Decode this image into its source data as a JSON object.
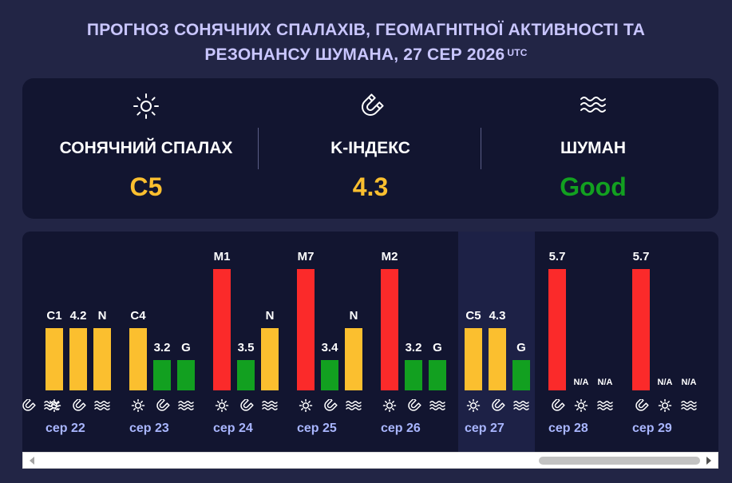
{
  "header": {
    "title_line1": "ПРОГНОЗ СОНЯЧНИХ СПАЛАХІВ, ГЕОМАГНІТНОЇ АКТИВНОСТІ ТА",
    "title_line2": "РЕЗОНАНСУ ШУМАНА, 27 СЕР 2026",
    "tz": "UTC"
  },
  "summary": {
    "flare": {
      "label": "СОНЯЧНИЙ СПАЛАХ",
      "value": "C5",
      "icon": "sun-icon",
      "color": "#fbbf2f"
    },
    "kindex": {
      "label": "K-ІНДЕКС",
      "value": "4.3",
      "icon": "magnet-icon",
      "color": "#fbbf2f"
    },
    "schumann": {
      "label": "ШУМАН",
      "value": "Good",
      "icon": "waves-icon",
      "color": "#12a020"
    }
  },
  "colors": {
    "yellow": "#fbbf2f",
    "green": "#12a020",
    "red": "#fb2a2a",
    "day_label": "#a9b6ff"
  },
  "days": [
    {
      "date": "",
      "flare": {
        "label": "",
        "level": "red"
      },
      "kindex": {
        "label": "",
        "level": "none"
      },
      "schumann": {
        "label": "",
        "level": "none"
      }
    },
    {
      "date": "сер 22",
      "flare": {
        "label": "C1",
        "level": "yellow"
      },
      "kindex": {
        "label": "4.2",
        "level": "yellow"
      },
      "schumann": {
        "label": "N",
        "level": "yellow"
      }
    },
    {
      "date": "сер 23",
      "flare": {
        "label": "C4",
        "level": "yellow"
      },
      "kindex": {
        "label": "3.2",
        "level": "green"
      },
      "schumann": {
        "label": "G",
        "level": "green"
      }
    },
    {
      "date": "сер 24",
      "flare": {
        "label": "M1",
        "level": "red"
      },
      "kindex": {
        "label": "3.5",
        "level": "green"
      },
      "schumann": {
        "label": "N",
        "level": "yellow"
      }
    },
    {
      "date": "сер 25",
      "flare": {
        "label": "M7",
        "level": "red"
      },
      "kindex": {
        "label": "3.4",
        "level": "green"
      },
      "schumann": {
        "label": "N",
        "level": "yellow"
      }
    },
    {
      "date": "сер 26",
      "flare": {
        "label": "M2",
        "level": "red"
      },
      "kindex": {
        "label": "3.2",
        "level": "green"
      },
      "schumann": {
        "label": "G",
        "level": "green"
      }
    },
    {
      "date": "сер 27",
      "flare": {
        "label": "C5",
        "level": "yellow"
      },
      "kindex": {
        "label": "4.3",
        "level": "yellow"
      },
      "schumann": {
        "label": "G",
        "level": "green"
      }
    },
    {
      "date": "сер 28",
      "kindex": {
        "label": "5.7",
        "level": "red"
      },
      "flare": {
        "label": "N/A",
        "level": "none"
      },
      "schumann": {
        "label": "N/A",
        "level": "none"
      }
    },
    {
      "date": "сер 29",
      "kindex": {
        "label": "5.7",
        "level": "red"
      },
      "flare": {
        "label": "N/A",
        "level": "none"
      },
      "schumann": {
        "label": "N/A",
        "level": "none"
      }
    }
  ]
}
